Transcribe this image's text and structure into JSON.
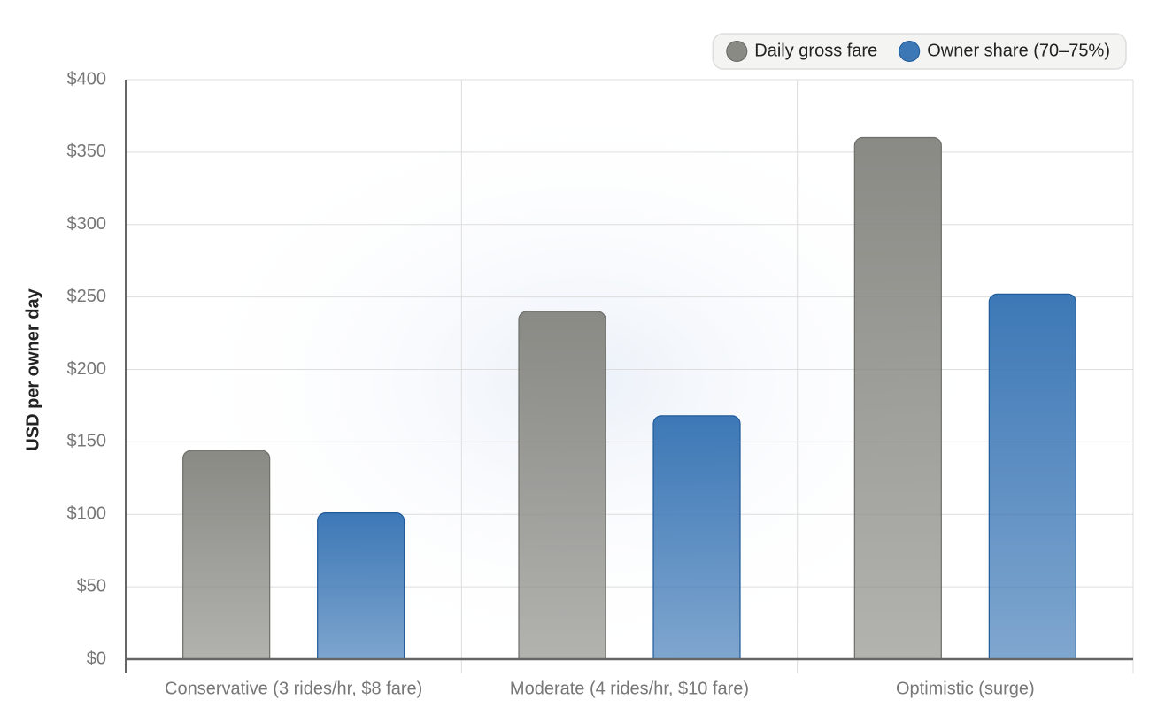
{
  "chart_data": {
    "type": "bar",
    "y_label": "USD per owner day",
    "categories": [
      "Conservative (3 rides/hr, $8 fare)",
      "Moderate (4 rides/hr, $10 fare)",
      "Optimistic (surge)"
    ],
    "series": [
      {
        "name": "Daily gross fare",
        "color": "#8a8a85",
        "values": [
          144,
          240,
          360
        ]
      },
      {
        "name": "Owner share (70–75%)",
        "color": "#3d78b6",
        "values": [
          101,
          168,
          252
        ]
      }
    ],
    "ylim": [
      0,
      400
    ],
    "yticks": [
      {
        "value": 0,
        "label": "$0"
      },
      {
        "value": 50,
        "label": "$50"
      },
      {
        "value": 100,
        "label": "$100"
      },
      {
        "value": 150,
        "label": "$150"
      },
      {
        "value": 200,
        "label": "$200"
      },
      {
        "value": 250,
        "label": "$250"
      },
      {
        "value": 300,
        "label": "$300"
      },
      {
        "value": 350,
        "label": "$350"
      },
      {
        "value": 400,
        "label": "$400"
      }
    ],
    "grid": true,
    "legend": "top-right"
  }
}
